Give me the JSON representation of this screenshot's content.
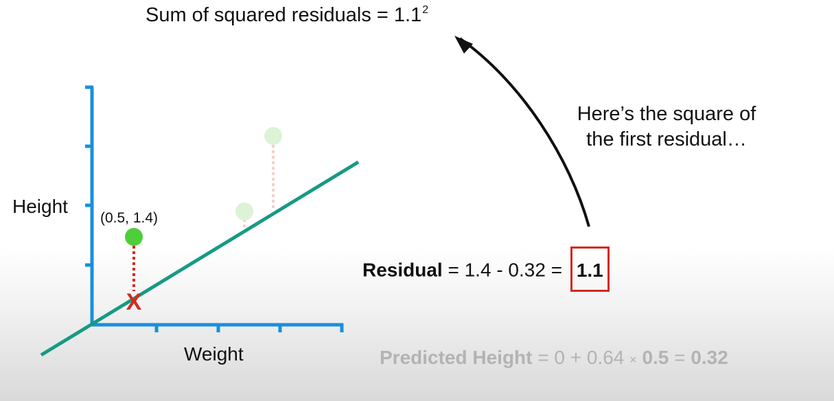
{
  "sum_annotation": {
    "text": "Sum of squared residuals = 1.1",
    "exponent": "2"
  },
  "note": {
    "line1": "Here’s the square of",
    "line2": "the first residual…"
  },
  "residual_equation": {
    "label": "Residual",
    "expression": " = 1.4 - 0.32 = ",
    "result": "1.1"
  },
  "predicted_equation": {
    "label": "Predicted Height",
    "expression": " = 0 + 0.64 ",
    "times": "×",
    "x_value": "0.5",
    "equals": " = ",
    "result": "0.32"
  },
  "plot": {
    "xlabel": "Weight",
    "ylabel": "Height",
    "highlighted_point_label": "(0.5, 1.4)",
    "marker": "X"
  },
  "colors": {
    "axes": "#1a8fdb",
    "line": "#169a84",
    "point": "#4ccf38",
    "faded_point": "#dcf3d6",
    "residual": "#d32a20",
    "faded_residual": "#f5cfcb",
    "box": "#d32a20",
    "arrow": "#111111",
    "predicted_text": "#b3b3b3"
  }
}
